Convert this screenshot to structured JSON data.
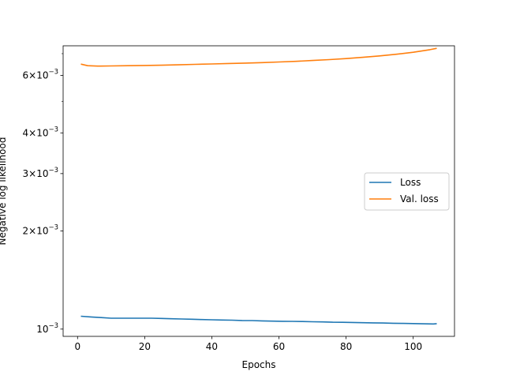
{
  "chart_data": {
    "type": "line",
    "xlabel": "Epochs",
    "ylabel": "Negative log likelihood",
    "yscale": "log",
    "xlim": [
      -4.3,
      112.3
    ],
    "ylim": [
      0.00095,
      0.0074
    ],
    "x_ticks": [
      {
        "value": 0,
        "label": "0"
      },
      {
        "value": 20,
        "label": "20"
      },
      {
        "value": 40,
        "label": "40"
      },
      {
        "value": 60,
        "label": "60"
      },
      {
        "value": 80,
        "label": "80"
      },
      {
        "value": 100,
        "label": "100"
      }
    ],
    "y_ticks": [
      {
        "value": 0.001,
        "mantissa": "",
        "exponent": "−3"
      },
      {
        "value": 0.002,
        "mantissa": "2×",
        "exponent": "−3"
      },
      {
        "value": 0.003,
        "mantissa": "3×",
        "exponent": "−3"
      },
      {
        "value": 0.004,
        "mantissa": "4×",
        "exponent": "−3"
      },
      {
        "value": 0.006,
        "mantissa": "6×",
        "exponent": "−3"
      }
    ],
    "y_minor_ticks": [
      0.005,
      0.007
    ],
    "grid": false,
    "legend_position": "center-right",
    "series": [
      {
        "name": "Loss",
        "color": "#1f77b4",
        "x": [
          1,
          4,
          7,
          10,
          13,
          16,
          19,
          22,
          25,
          28,
          31,
          34,
          37,
          40,
          43,
          46,
          49,
          52,
          55,
          58,
          61,
          64,
          67,
          70,
          73,
          76,
          79,
          82,
          85,
          88,
          91,
          94,
          97,
          100,
          103,
          106,
          107
        ],
        "y": [
          0.001095,
          0.00109,
          0.001085,
          0.00108,
          0.00108,
          0.00108,
          0.00108,
          0.00108,
          0.001078,
          0.001076,
          0.001074,
          0.001072,
          0.00107,
          0.001068,
          0.001066,
          0.001065,
          0.001063,
          0.001062,
          0.00106,
          0.001058,
          0.001057,
          0.001056,
          0.001055,
          0.001053,
          0.001052,
          0.00105,
          0.001049,
          0.001048,
          0.001046,
          0.001045,
          0.001044,
          0.001042,
          0.001041,
          0.00104,
          0.001038,
          0.001037,
          0.001039
        ]
      },
      {
        "name": "Val. loss",
        "color": "#ff7f0e",
        "x": [
          1,
          3,
          6,
          10,
          15,
          20,
          25,
          30,
          35,
          40,
          45,
          50,
          55,
          60,
          65,
          70,
          75,
          80,
          85,
          90,
          95,
          100,
          105,
          107
        ],
        "y": [
          0.0065,
          0.00643,
          0.00641,
          0.00642,
          0.00643,
          0.00644,
          0.00645,
          0.00647,
          0.00649,
          0.00651,
          0.00653,
          0.00655,
          0.00657,
          0.0066,
          0.00663,
          0.00667,
          0.00671,
          0.00676,
          0.00682,
          0.00689,
          0.00697,
          0.00707,
          0.0072,
          0.00727
        ]
      }
    ]
  }
}
